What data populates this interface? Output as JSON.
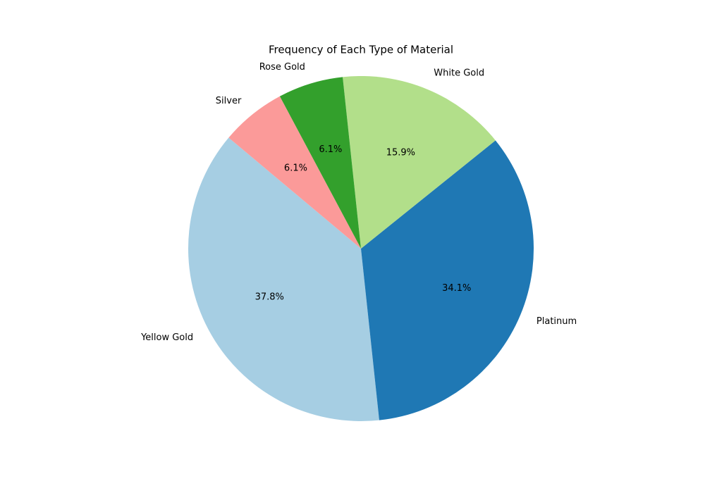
{
  "chart_data": {
    "type": "pie",
    "title": "Frequency of Each Type of Material",
    "categories": [
      "Yellow Gold",
      "Platinum",
      "White Gold",
      "Rose Gold",
      "Silver"
    ],
    "values": [
      37.8,
      34.1,
      15.9,
      6.1,
      6.1
    ],
    "value_labels": [
      "37.8%",
      "34.1%",
      "15.9%",
      "6.1%",
      "6.1%"
    ],
    "colors": [
      "#a6cee3",
      "#1f78b4",
      "#b2df8a",
      "#33a02c",
      "#fb9a99"
    ]
  }
}
